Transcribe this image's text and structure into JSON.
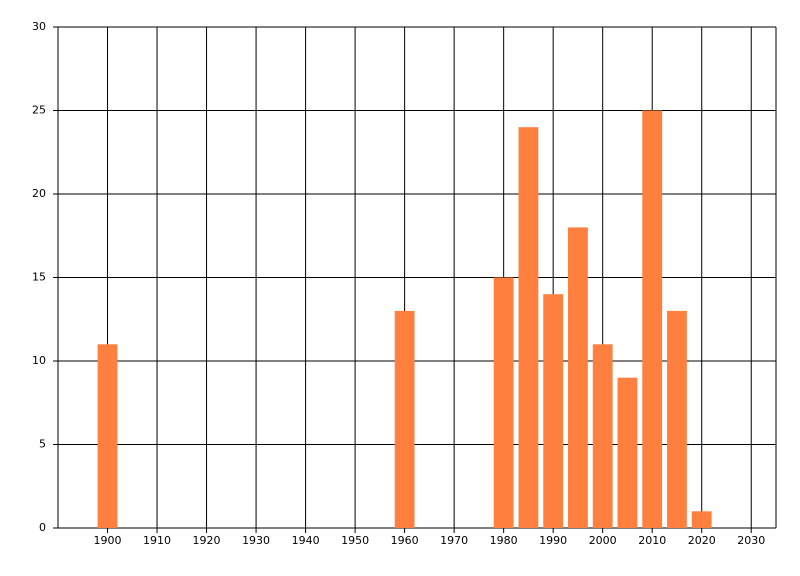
{
  "chart_data": {
    "type": "bar",
    "x": [
      1900,
      1960,
      1980,
      1985,
      1990,
      1995,
      2000,
      2005,
      2010,
      2015,
      2020
    ],
    "values": [
      11,
      13,
      15,
      24,
      14,
      18,
      11,
      9,
      25,
      13,
      1
    ],
    "color": "#ff7f3f",
    "xlim": [
      1890,
      2035
    ],
    "xticks": [
      1900,
      1910,
      1920,
      1930,
      1940,
      1950,
      1960,
      1970,
      1980,
      1990,
      2000,
      2010,
      2020,
      2030
    ],
    "ylim": [
      0,
      30
    ],
    "yticks": [
      0,
      5,
      10,
      15,
      20,
      25,
      30
    ],
    "grid": true
  }
}
